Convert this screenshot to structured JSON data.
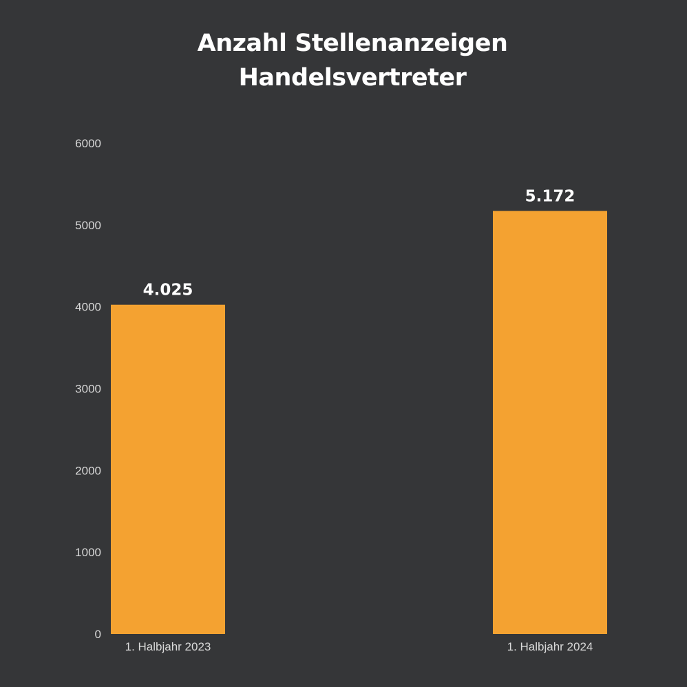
{
  "chart_data": {
    "type": "bar",
    "title": [
      "Anzahl Stellenanzeigen",
      "Handelsvertreter"
    ],
    "categories": [
      "1. Halbjahr 2023",
      "1. Halbjahr 2024"
    ],
    "values": [
      4025,
      5172
    ],
    "data_labels": [
      "4.025",
      "5.172"
    ],
    "y_ticks": [
      "0",
      "1000",
      "2000",
      "3000",
      "4000",
      "5000",
      "6000"
    ],
    "ylim": [
      0,
      6000
    ],
    "grid": false,
    "legend": "none",
    "bar_color": "#f4a231",
    "background_color": "#353638",
    "text_color": "#ffffff",
    "tick_color": "#d9d9d9"
  }
}
